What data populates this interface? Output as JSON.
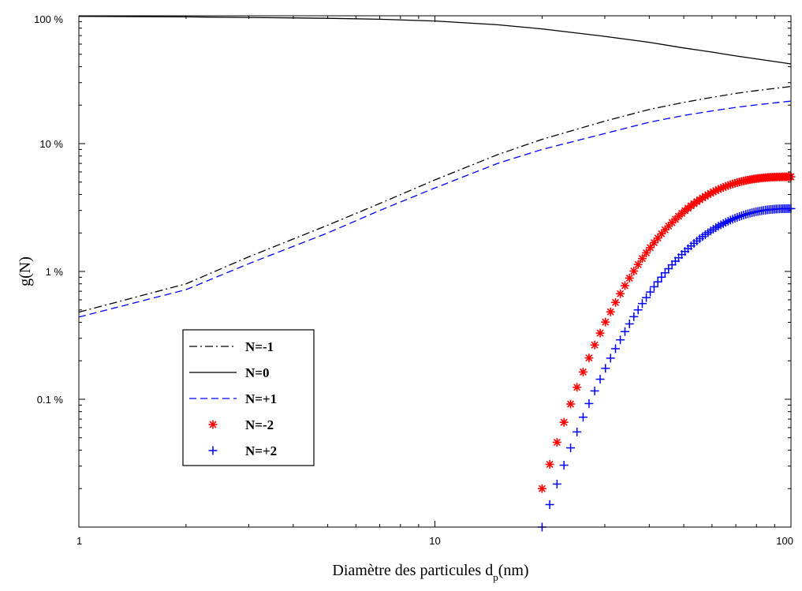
{
  "chart_data": {
    "type": "line",
    "xlabel": "Diamètre des particules d",
    "xlabel_subscript": "p",
    "xlabel_suffix": "(nm)",
    "ylabel": "g(N)",
    "xscale": "log",
    "yscale": "log",
    "xlim": [
      1,
      100
    ],
    "ylim": [
      0.01,
      100
    ],
    "x_ticks": [
      {
        "value": 1,
        "label": "1"
      },
      {
        "value": 10,
        "label": "10"
      },
      {
        "value": 100,
        "label": "100"
      }
    ],
    "y_ticks": [
      {
        "value": 100,
        "label": "100 %"
      },
      {
        "value": 10,
        "label": "10 %"
      },
      {
        "value": 1,
        "label": "1 %"
      },
      {
        "value": 0.1,
        "label": "0.1 %"
      }
    ],
    "legend_position": "lower-left",
    "series": [
      {
        "name": "N=-1",
        "style": "dashdot",
        "color": "#000000",
        "points": [
          [
            1,
            0.48
          ],
          [
            2,
            0.8
          ],
          [
            3,
            1.3
          ],
          [
            5,
            2.3
          ],
          [
            7,
            3.4
          ],
          [
            10,
            5.2
          ],
          [
            15,
            8.2
          ],
          [
            20,
            10.8
          ],
          [
            30,
            15
          ],
          [
            40,
            18.5
          ],
          [
            50,
            21
          ],
          [
            60,
            23
          ],
          [
            70,
            24.7
          ],
          [
            80,
            26
          ],
          [
            100,
            28
          ]
        ]
      },
      {
        "name": "N=0",
        "style": "solid",
        "color": "#000000",
        "points": [
          [
            1,
            99
          ],
          [
            2,
            98
          ],
          [
            3,
            97
          ],
          [
            5,
            95.5
          ],
          [
            7,
            94
          ],
          [
            10,
            91
          ],
          [
            15,
            85
          ],
          [
            20,
            79
          ],
          [
            30,
            69
          ],
          [
            40,
            62
          ],
          [
            50,
            56
          ],
          [
            60,
            52
          ],
          [
            70,
            48.5
          ],
          [
            80,
            46
          ],
          [
            100,
            42
          ]
        ]
      },
      {
        "name": "N=+1",
        "style": "dashed",
        "color": "#0000ff",
        "points": [
          [
            1,
            0.44
          ],
          [
            2,
            0.72
          ],
          [
            3,
            1.15
          ],
          [
            5,
            2.0
          ],
          [
            7,
            3.0
          ],
          [
            10,
            4.5
          ],
          [
            15,
            7.0
          ],
          [
            20,
            9.0
          ],
          [
            30,
            12
          ],
          [
            40,
            14.7
          ],
          [
            50,
            16.6
          ],
          [
            60,
            18
          ],
          [
            70,
            19.2
          ],
          [
            80,
            20.1
          ],
          [
            100,
            21.5
          ]
        ]
      },
      {
        "name": "N=-2",
        "style": "markers-star",
        "color": "#ff0000",
        "x_range": [
          20,
          100
        ],
        "y_at_start": 0.02,
        "y_at_end": 5.5,
        "shape_exponent": 2.6,
        "marker_count": 80
      },
      {
        "name": "N=+2",
        "style": "markers-plus",
        "color": "#0000ff",
        "x_range": [
          20,
          100
        ],
        "y_at_start": 0.01,
        "y_at_end": 3.1,
        "shape_exponent": 2.35,
        "marker_count": 80
      }
    ]
  }
}
